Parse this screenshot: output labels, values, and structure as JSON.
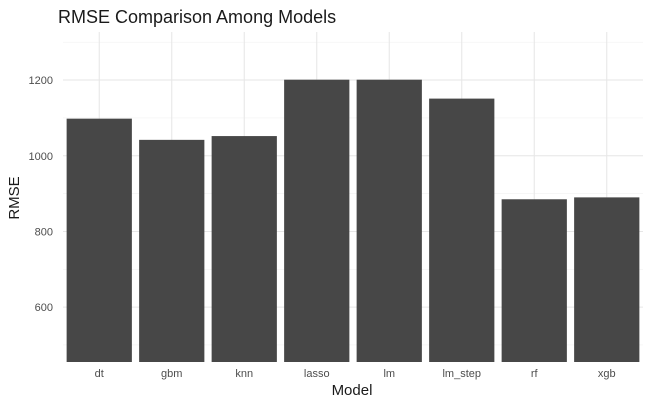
{
  "chart_data": {
    "type": "bar",
    "title": "RMSE Comparison Among Models",
    "xlabel": "Model",
    "ylabel": "RMSE",
    "categories": [
      "dt",
      "gbm",
      "knn",
      "lasso",
      "lm",
      "lm_step",
      "rf",
      "xgb"
    ],
    "values": [
      1098,
      1042,
      1052,
      1201,
      1201,
      1151,
      885,
      890
    ],
    "ylim": [
      455,
      1327
    ],
    "yticks": [
      600,
      800,
      1000,
      1200
    ],
    "ytick_labels": [
      "600",
      "800",
      "1000",
      "1200"
    ],
    "grid": true,
    "legend": "none",
    "colors": {
      "bar": "#474747",
      "grid_major": "#e6e6e6",
      "grid_minor": "#f2f2f2",
      "background": "#ffffff"
    }
  }
}
